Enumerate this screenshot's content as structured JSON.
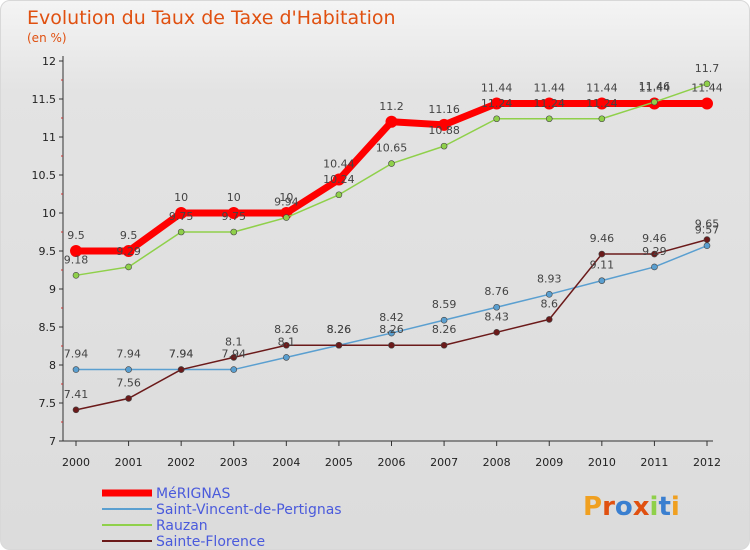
{
  "title": "Evolution du Taux de Taxe d'Habitation",
  "unit": "(en %)",
  "logo": "Proxiti",
  "chart_data": {
    "type": "line",
    "title": "Evolution du Taux de Taxe d'Habitation",
    "ylabel": "(en %)",
    "x": [
      "2000",
      "2001",
      "2002",
      "2003",
      "2004",
      "2005",
      "2006",
      "2007",
      "2008",
      "2009",
      "2010",
      "2011",
      "2012"
    ],
    "ylim": [
      7,
      12
    ],
    "yticks": [
      "7",
      "7.5",
      "8",
      "8.5",
      "9",
      "9.5",
      "10",
      "10.5",
      "11",
      "11.5",
      "12"
    ],
    "grid": false,
    "legend_position": "bottom-left",
    "series": [
      {
        "name": "MéRIGNAS",
        "color": "#ff0000",
        "values": [
          9.5,
          9.5,
          10,
          10,
          10,
          10.44,
          11.2,
          11.16,
          11.44,
          11.44,
          11.44,
          11.44,
          11.44
        ],
        "labels": [
          "9.5",
          "9.5",
          "10",
          "10",
          "10",
          "10.44",
          "11.2",
          "11.16",
          "11.44",
          "11.44",
          "11.44",
          "11.44",
          "11.44"
        ]
      },
      {
        "name": "Saint-Vincent-de-Pertignas",
        "color": "#5a9fd0",
        "values": [
          7.94,
          7.94,
          7.94,
          7.94,
          8.1,
          8.26,
          8.42,
          8.59,
          8.76,
          8.93,
          9.11,
          9.29,
          9.57
        ],
        "labels": [
          "7.94",
          "7.94",
          "7.94",
          "7.94",
          "8.1",
          "8.26",
          "8.42",
          "8.59",
          "8.76",
          "8.93",
          "9.11",
          "9.29",
          "9.57"
        ]
      },
      {
        "name": "Rauzan",
        "color": "#8fd04a",
        "values": [
          9.18,
          9.29,
          9.75,
          9.75,
          9.94,
          10.24,
          10.65,
          10.88,
          11.24,
          11.24,
          11.24,
          11.46,
          11.7
        ],
        "labels": [
          "9.18",
          "9.29",
          "9.75",
          "9.75",
          "9.94",
          "10.24",
          "10.65",
          "10.88",
          "11.24",
          "11.24",
          "11.24",
          "11.46",
          "11.7"
        ]
      },
      {
        "name": "Sainte-Florence",
        "color": "#6b1a1a",
        "values": [
          7.41,
          7.56,
          7.94,
          8.1,
          8.26,
          8.26,
          8.26,
          8.26,
          8.43,
          8.6,
          9.46,
          9.46,
          9.65
        ],
        "labels": [
          "7.41",
          "7.56",
          "7.94",
          "8.1",
          "8.26",
          "8.26",
          "8.26",
          "8.26",
          "8.43",
          "8.6",
          "9.46",
          "9.46",
          "9.65"
        ]
      }
    ]
  }
}
